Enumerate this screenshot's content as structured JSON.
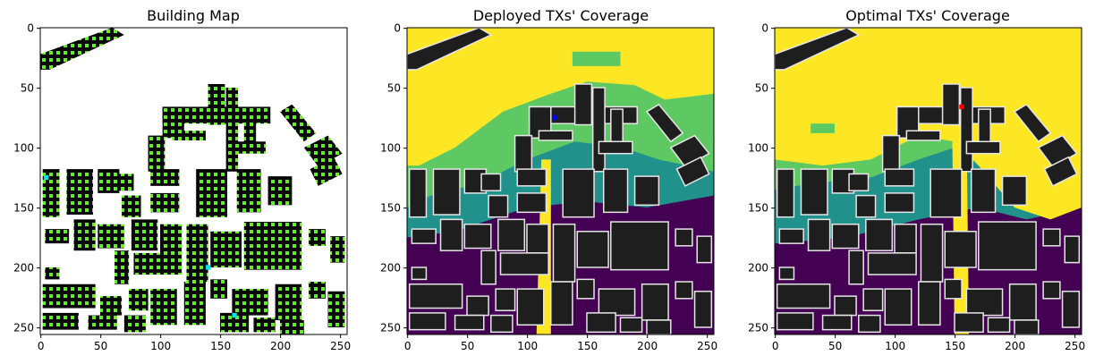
{
  "figure": {
    "panels": [
      {
        "title": "Building Map"
      },
      {
        "title": "Deployed TXs' Coverage"
      },
      {
        "title": "Optimal TXs' Coverage"
      }
    ]
  },
  "chart_data": [
    {
      "type": "heatmap",
      "title": "Building Map",
      "xlabel": "",
      "ylabel": "",
      "xlim": [
        0,
        255
      ],
      "ylim": [
        255,
        0
      ],
      "xticks": [
        0,
        50,
        100,
        150,
        200,
        250
      ],
      "yticks": [
        0,
        50,
        100,
        150,
        200,
        250
      ],
      "grid": false,
      "colors": {
        "background": "#ffffff",
        "building": "#000000",
        "rooftop_markers": "#66ee22",
        "highlight": "#00e5ee"
      },
      "buildings": [
        {
          "x": [
            0,
            70
          ],
          "y": [
            0,
            35
          ],
          "shape": "diagonal-strip"
        },
        {
          "x": [
            102,
            195
          ],
          "y": [
            47,
            113
          ],
          "shape": "L-shaped-complex"
        },
        {
          "x": [
            202,
            250
          ],
          "y": [
            70,
            130
          ],
          "shape": "diagonal-blocks"
        },
        {
          "x": [
            0,
            120
          ],
          "y": [
            118,
            250
          ],
          "shape": "block-grid"
        },
        {
          "x": [
            120,
            255
          ],
          "y": [
            118,
            255
          ],
          "shape": "block-grid"
        }
      ],
      "highlight_points": [
        [
          140,
          200
        ],
        [
          162,
          240
        ],
        [
          5,
          125
        ]
      ]
    },
    {
      "type": "heatmap",
      "title": "Deployed TXs' Coverage",
      "xlabel": "",
      "ylabel": "",
      "xlim": [
        0,
        255
      ],
      "ylim": [
        255,
        0
      ],
      "xticks": [
        0,
        50,
        100,
        150,
        200,
        250
      ],
      "yticks": [
        0,
        50,
        100,
        150,
        200,
        250
      ],
      "grid": false,
      "colormap": "viridis",
      "levels": [
        "#440154",
        "#21918c",
        "#5ec962",
        "#fde725"
      ],
      "tx_marker": {
        "x": 123,
        "y": 75,
        "color": "#0000ff"
      }
    },
    {
      "type": "heatmap",
      "title": "Optimal TXs' Coverage",
      "xlabel": "",
      "ylabel": "",
      "xlim": [
        0,
        255
      ],
      "ylim": [
        255,
        0
      ],
      "xticks": [
        0,
        50,
        100,
        150,
        200,
        250
      ],
      "yticks": [
        0,
        50,
        100,
        150,
        200,
        250
      ],
      "grid": false,
      "colormap": "viridis",
      "levels": [
        "#440154",
        "#21918c",
        "#5ec962",
        "#fde725"
      ],
      "tx_marker": {
        "x": 156,
        "y": 66,
        "color": "#ff0000"
      }
    }
  ]
}
